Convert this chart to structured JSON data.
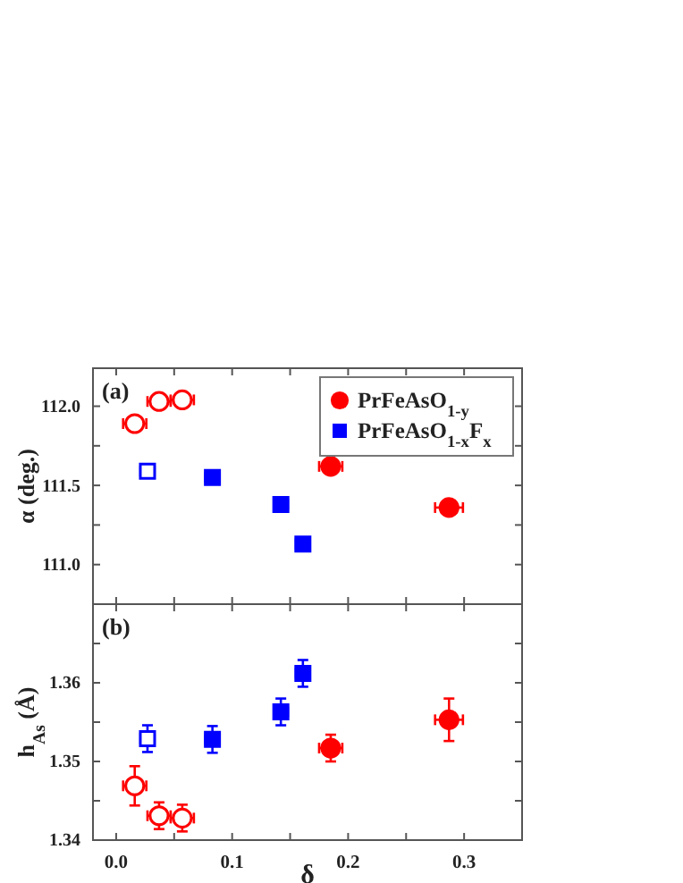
{
  "chart_data": [
    {
      "type": "scatter",
      "ylabel": "α (deg.)",
      "annotations": [
        "(a)"
      ],
      "legend": "top right",
      "tick_labels": "y",
      "xlim": [
        -0.02,
        0.35
      ],
      "xticks": [
        {
          "value": 0,
          "label": null
        },
        {
          "value": 0.05,
          "label": null
        },
        {
          "value": 0.1,
          "label": null
        },
        {
          "value": 0.15,
          "label": null
        },
        {
          "value": 0.2,
          "label": null
        },
        {
          "value": 0.25,
          "label": null
        },
        {
          "value": 0.3,
          "label": null
        }
      ],
      "ylim": [
        110.75,
        112.24
      ],
      "yticks": [
        {
          "value": 111,
          "label": "111.0"
        },
        {
          "value": 111.25,
          "label": null
        },
        111.5,
        {
          "value": 111.75,
          "label": null
        },
        {
          "value": 112,
          "label": "112.0"
        }
      ],
      "series": [
        {
          "name": "PrFeAsO$_{1-y}$",
          "color": "#ff0000",
          "marker": "circle",
          "x": [
            0.185,
            0.287
          ],
          "values": [
            111.62,
            111.36
          ],
          "xerrors": [
            0.01,
            0.012
          ]
        },
        {
          "color": "#ff0000",
          "marker": "circle-open",
          "x": [
            0.016,
            0.037,
            0.057
          ],
          "values": [
            111.89,
            112.03,
            112.04
          ],
          "xerrors": [
            0.01,
            0.01,
            0.01
          ]
        },
        {
          "name": "PrFeAsO$_{1-x}$F$_{x}$",
          "color": "#0000ff",
          "marker": "square",
          "x": [
            0.083,
            0.142,
            0.161
          ],
          "values": [
            111.55,
            111.38,
            111.13
          ],
          "xerrors": [
            0.006,
            0.006,
            0.006
          ]
        },
        {
          "color": "#0000ff",
          "marker": "square-open",
          "x": [
            0.027
          ],
          "values": [
            111.59
          ],
          "xerrors": [
            0.006
          ]
        }
      ]
    },
    {
      "type": "scatter",
      "xlabel": "δ",
      "ylabel": "h$_{As}$ (Å)",
      "annotations": [
        "(b)"
      ],
      "xlim": [
        -0.02,
        0.35
      ],
      "xticks": [
        {
          "value": 0,
          "label": "0.0"
        },
        {
          "value": 0.05,
          "label": null
        },
        0.1,
        {
          "value": 0.15,
          "label": null
        },
        0.2,
        {
          "value": 0.25,
          "label": null
        },
        0.3
      ],
      "ylim": [
        1.34,
        1.37
      ],
      "yticks": [
        1.34,
        {
          "value": 1.345,
          "label": null
        },
        1.35,
        {
          "value": 1.355,
          "label": null
        },
        1.36,
        {
          "value": 1.365,
          "label": null
        }
      ],
      "series": [
        {
          "color": "#ff0000",
          "marker": "circle",
          "x": [
            0.185,
            0.287
          ],
          "values": [
            1.3517,
            1.3553
          ],
          "xerrors": [
            0.01,
            0.012
          ],
          "errors": [
            0.0017,
            0.0027
          ]
        },
        {
          "color": "#ff0000",
          "marker": "circle-open",
          "x": [
            0.016,
            0.037,
            0.057
          ],
          "values": [
            1.3469,
            1.3431,
            1.3428
          ],
          "xerrors": [
            0.01,
            0.01,
            0.01
          ],
          "errors": [
            0.0025,
            0.0017,
            0.0017
          ]
        },
        {
          "color": "#0000ff",
          "marker": "square",
          "x": [
            0.083,
            0.142,
            0.161
          ],
          "values": [
            1.3528,
            1.3563,
            1.3612
          ],
          "xerrors": [
            0.006,
            0.006,
            0.006
          ],
          "errors": [
            0.0017,
            0.0017,
            0.0017
          ]
        },
        {
          "color": "#0000ff",
          "marker": "square-open",
          "x": [
            0.027
          ],
          "values": [
            1.3529
          ],
          "xerrors": [
            0.006
          ],
          "errors": [
            0.0017
          ]
        }
      ]
    }
  ]
}
